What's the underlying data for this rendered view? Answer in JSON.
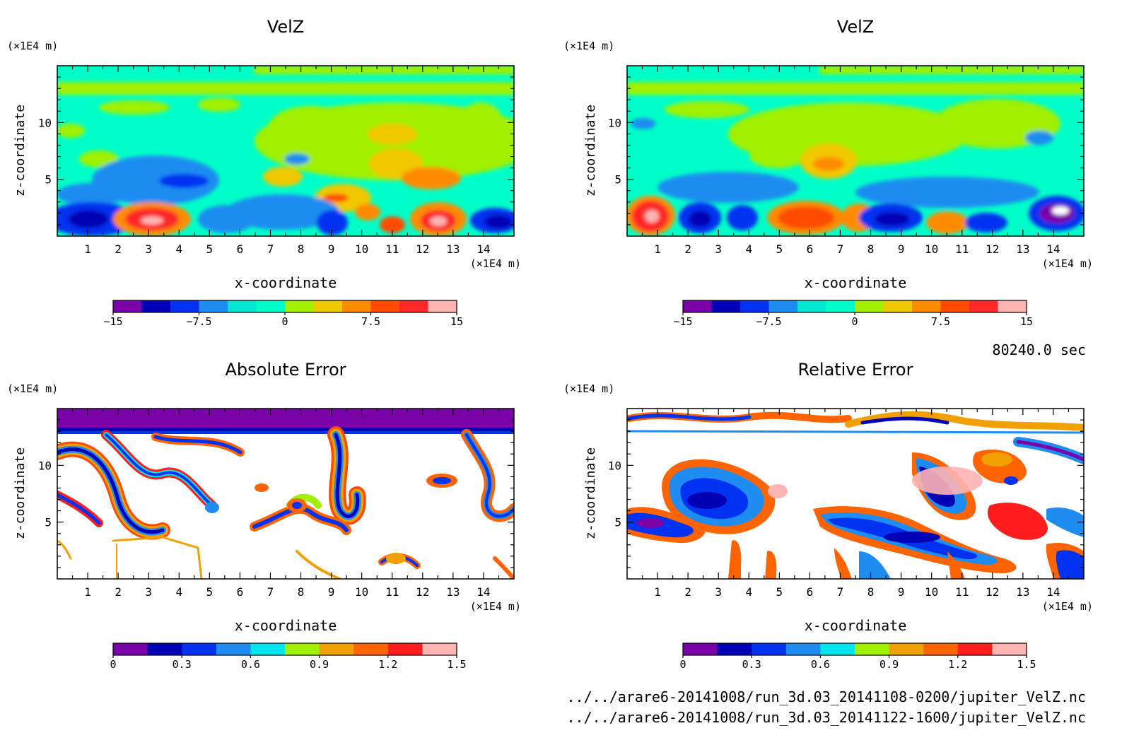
{
  "colors": {
    "velz_levels": [
      "#7a00a8",
      "#0000b4",
      "#0032f0",
      "#1e8cf0",
      "#00e6d2",
      "#00ffc8",
      "#a0f000",
      "#f0c800",
      "#ff8c00",
      "#ff4b00",
      "#ff2828",
      "#ffb4b4"
    ],
    "error_levels": [
      "#7a00a8",
      "#0000b4",
      "#0032f0",
      "#1e8cf0",
      "#00e6f0",
      "#a0f000",
      "#f0a000",
      "#ff6400",
      "#ff1e1e",
      "#ffb4b4"
    ],
    "background": "#ffffff"
  },
  "chart_data": [
    {
      "type": "heatmap",
      "title": "VelZ",
      "xlabel": "x-coordinate",
      "ylabel": "z-coordinate",
      "x_unit": "(×1E4 m)",
      "y_unit": "(×1E4 m)",
      "xlim": [
        0,
        15
      ],
      "ylim": [
        0,
        15
      ],
      "x_ticks": [
        "1",
        "2",
        "3",
        "4",
        "5",
        "6",
        "7",
        "8",
        "9",
        "10",
        "11",
        "12",
        "13",
        "14"
      ],
      "y_ticks": [
        "5",
        "10"
      ],
      "colorbar": {
        "range": [
          -15,
          15
        ],
        "labels": [
          "−15",
          "−7.5",
          "0",
          "7.5",
          "15"
        ]
      }
    },
    {
      "type": "heatmap",
      "title": "VelZ",
      "xlabel": "x-coordinate",
      "ylabel": "z-coordinate",
      "x_unit": "(×1E4 m)",
      "y_unit": "(×1E4 m)",
      "xlim": [
        0,
        15
      ],
      "ylim": [
        0,
        15
      ],
      "x_ticks": [
        "1",
        "2",
        "3",
        "4",
        "5",
        "6",
        "7",
        "8",
        "9",
        "10",
        "11",
        "12",
        "13",
        "14"
      ],
      "y_ticks": [
        "5",
        "10"
      ],
      "colorbar": {
        "range": [
          -15,
          15
        ],
        "labels": [
          "−15",
          "−7.5",
          "0",
          "7.5",
          "15"
        ]
      }
    },
    {
      "type": "heatmap",
      "title": "Absolute Error",
      "xlabel": "x-coordinate",
      "ylabel": "z-coordinate",
      "x_unit": "(×1E4 m)",
      "y_unit": "(×1E4 m)",
      "xlim": [
        0,
        15
      ],
      "ylim": [
        0,
        15
      ],
      "x_ticks": [
        "1",
        "2",
        "3",
        "4",
        "5",
        "6",
        "7",
        "8",
        "9",
        "10",
        "11",
        "12",
        "13",
        "14"
      ],
      "y_ticks": [
        "5",
        "10"
      ],
      "colorbar": {
        "range": [
          0,
          1.5
        ],
        "labels": [
          "0",
          "0.3",
          "0.6",
          "0.9",
          "1.2",
          "1.5"
        ]
      }
    },
    {
      "type": "heatmap",
      "title": "Relative Error",
      "xlabel": "x-coordinate",
      "ylabel": "z-coordinate",
      "x_unit": "(×1E4 m)",
      "y_unit": "(×1E4 m)",
      "xlim": [
        0,
        15
      ],
      "ylim": [
        0,
        15
      ],
      "x_ticks": [
        "1",
        "2",
        "3",
        "4",
        "5",
        "6",
        "7",
        "8",
        "9",
        "10",
        "11",
        "12",
        "13",
        "14"
      ],
      "y_ticks": [
        "5",
        "10"
      ],
      "colorbar": {
        "range": [
          0,
          1.5
        ],
        "labels": [
          "0",
          "0.3",
          "0.6",
          "0.9",
          "1.2",
          "1.5"
        ]
      }
    }
  ],
  "time_label": "80240.0 sec",
  "files": [
    "../../arare6-20141008/run_3d.03_20141108-0200/jupiter_VelZ.nc",
    "../../arare6-20141008/run_3d.03_20141122-1600/jupiter_VelZ.nc"
  ]
}
